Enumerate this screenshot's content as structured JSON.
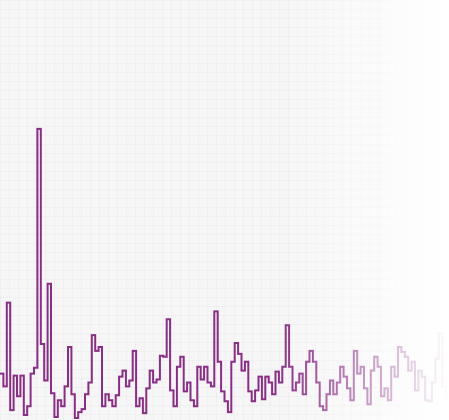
{
  "chart_data": {
    "type": "line",
    "style": "step",
    "grid": true,
    "series": [
      {
        "color": "#8b2c87",
        "values": [
          45,
          45,
          32,
          32,
          117,
          117,
          8,
          8,
          43,
          43,
          22,
          22,
          43,
          43,
          3,
          3,
          12,
          12,
          45,
          45,
          51,
          51,
          293,
          293,
          75,
          75,
          38,
          38,
          136,
          136,
          25,
          25,
          1,
          1,
          18,
          18,
          12,
          12,
          32,
          32,
          72,
          72,
          24,
          24,
          0,
          0,
          6,
          6,
          9,
          9,
          24,
          24,
          36,
          36,
          84,
          84,
          68,
          68,
          72,
          72,
          12,
          12,
          24,
          24,
          18,
          18,
          12,
          12,
          23,
          23,
          42,
          42,
          48,
          48,
          32,
          32,
          38,
          38,
          68,
          68,
          12,
          12,
          20,
          20,
          5,
          5,
          30,
          30,
          48,
          48,
          36,
          36,
          39,
          39,
          63,
          63,
          62,
          62,
          100,
          100,
          28,
          28,
          12,
          12,
          52,
          52,
          62,
          62,
          27,
          27,
          36,
          36,
          18,
          18,
          12,
          12,
          52,
          52,
          39,
          39,
          52,
          52,
          36,
          36,
          32,
          32,
          108,
          108,
          57,
          57,
          27,
          27,
          17,
          17,
          6,
          6,
          57,
          57,
          76,
          76,
          65,
          65,
          48,
          48,
          57,
          57,
          27,
          27,
          17,
          17,
          28,
          28,
          42,
          42,
          19,
          19,
          42,
          42,
          36,
          36,
          24,
          24,
          47,
          47,
          36,
          36,
          52,
          52,
          94,
          94,
          52,
          52,
          28,
          28,
          36,
          36,
          45,
          45,
          24,
          24,
          57,
          57,
          68,
          68,
          57,
          57,
          36,
          36,
          12,
          12,
          8,
          8,
          24,
          24,
          38,
          38,
          24,
          24,
          36,
          36,
          52,
          52,
          42,
          42,
          30,
          30,
          18,
          18,
          68,
          68,
          45,
          45,
          52,
          52,
          30,
          30,
          14,
          14,
          48,
          48,
          62,
          62,
          52,
          52,
          22,
          22,
          30,
          30,
          18,
          18,
          52,
          52,
          42,
          42,
          72,
          72,
          67,
          67,
          62,
          62,
          48,
          48,
          57,
          57,
          28,
          28,
          48,
          48,
          42,
          42,
          18,
          18,
          17,
          17,
          36,
          36,
          60,
          60,
          86,
          86,
          32,
          32,
          22,
          22
        ]
      }
    ],
    "ylim": [
      0,
      300
    ]
  }
}
